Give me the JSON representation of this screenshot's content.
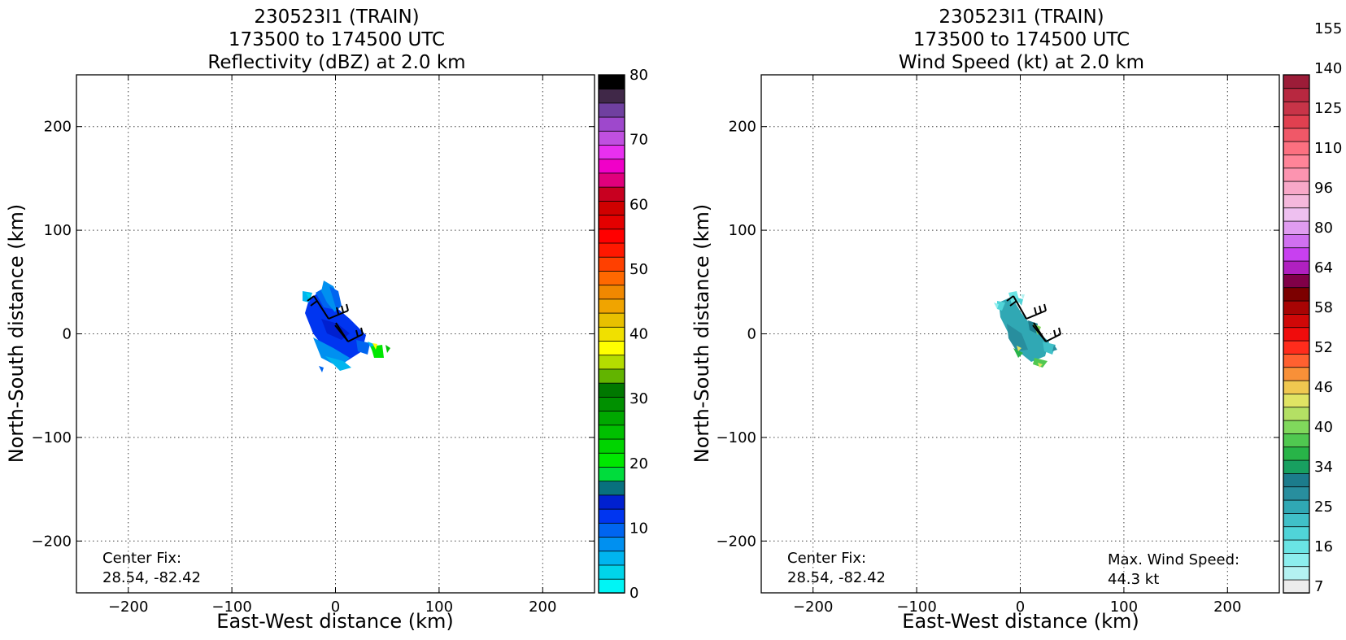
{
  "charts": [
    {
      "type": "heatmap",
      "title_lines": [
        "230523I1 (TRAIN)",
        "173500 to 174500 UTC",
        "Reflectivity (dBZ) at 2.0 km"
      ],
      "xlabel": "East-West distance (km)",
      "ylabel": "North-South distance (km)",
      "xlim": [
        -250,
        250
      ],
      "ylim": [
        -250,
        250
      ],
      "xticks": [
        -200,
        -100,
        0,
        100,
        200
      ],
      "yticks": [
        -200,
        -100,
        0,
        100,
        200
      ],
      "grid": true,
      "center_fix_label": "Center Fix:",
      "center_fix_value": "28.54, -82.42",
      "colorbar": {
        "min": 0,
        "max": 80,
        "tick_values": [
          0,
          10,
          20,
          30,
          40,
          50,
          60,
          70,
          80
        ],
        "tick_labels": [
          "0",
          "10",
          "20",
          "30",
          "40",
          "50",
          "60",
          "70",
          "80"
        ],
        "colors": [
          "#00f5f5",
          "#00d5ea",
          "#00b5ef",
          "#0090f0",
          "#0065f0",
          "#0035f0",
          "#0020d0",
          "#08707e",
          "#00dc3c",
          "#00e800",
          "#00d400",
          "#00c000",
          "#00a800",
          "#009000",
          "#007800",
          "#62b400",
          "#b4dc00",
          "#ffff00",
          "#f0e000",
          "#e8c000",
          "#f0a400",
          "#f08800",
          "#ff6800",
          "#ff4000",
          "#ff1800",
          "#ff0000",
          "#e40000",
          "#d00000",
          "#c80020",
          "#e0007c",
          "#f000c8",
          "#e830f0",
          "#c050e0",
          "#9e48cc",
          "#7040a0",
          "#402848",
          "#000000"
        ]
      }
    },
    {
      "type": "heatmap",
      "title_lines": [
        "230523I1 (TRAIN)",
        "173500 to 174500 UTC",
        "Wind Speed (kt) at 2.0 km"
      ],
      "xlabel": "East-West distance (km)",
      "ylabel": "North-South distance (km)",
      "xlim": [
        -250,
        250
      ],
      "ylim": [
        -250,
        250
      ],
      "xticks": [
        -200,
        -100,
        0,
        100,
        200
      ],
      "yticks": [
        -200,
        -100,
        0,
        100,
        200
      ],
      "grid": true,
      "center_fix_label": "Center Fix:",
      "center_fix_value": "28.54, -82.42",
      "max_wind_label": "Max. Wind Speed:",
      "max_wind_value": "44.3 kt",
      "colorbar": {
        "tick_labels": [
          "7",
          "16",
          "25",
          "34",
          "40",
          "46",
          "52",
          "58",
          "64",
          "80",
          "96",
          "110",
          "125",
          "140",
          "155"
        ],
        "tick_bins": [
          0,
          3,
          6,
          9,
          12,
          15,
          18,
          21,
          24,
          27,
          30,
          33,
          36,
          39,
          42
        ],
        "colors": [
          "#ececec",
          "#b4f2f2",
          "#8ceeee",
          "#6ae4e4",
          "#50d4d8",
          "#40c0c8",
          "#30a8b4",
          "#288e9e",
          "#1c7c8c",
          "#18a060",
          "#28b448",
          "#50c850",
          "#80d85c",
          "#b4e064",
          "#e0e464",
          "#f0c850",
          "#f89038",
          "#ff6030",
          "#ff2c1c",
          "#f00c0c",
          "#d00808",
          "#a80404",
          "#7c0000",
          "#800048",
          "#b020c0",
          "#c840f0",
          "#d070f0",
          "#e09cf0",
          "#eec0f0",
          "#f4b8dc",
          "#f8a8c8",
          "#fc94b0",
          "#ff8498",
          "#fc7080",
          "#f05868",
          "#e04050",
          "#c83448",
          "#b82840",
          "#9c1c38"
        ]
      }
    }
  ]
}
